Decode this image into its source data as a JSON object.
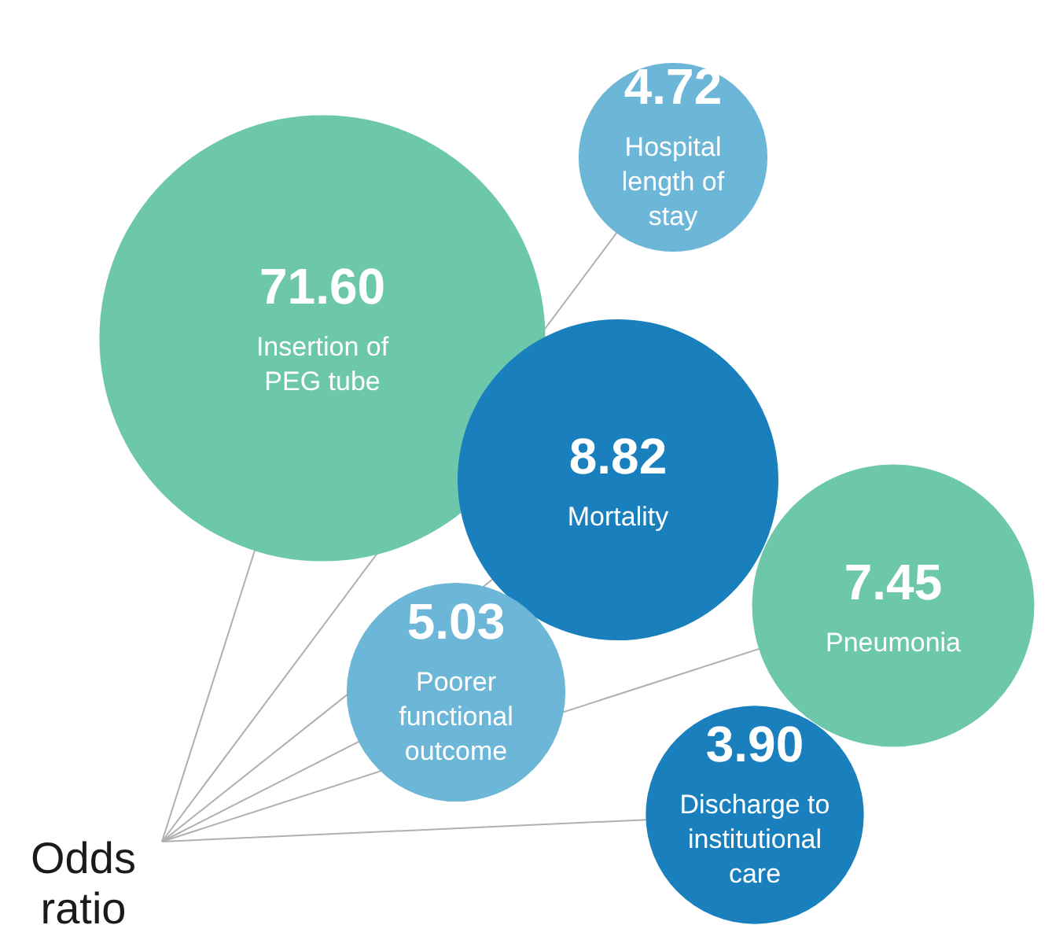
{
  "chart_data": {
    "type": "other",
    "categories": [
      "Insertion of PEG tube",
      "Hospital length of stay",
      "Pneumonia",
      "Mortality",
      "Poorer functional outcome",
      "Discharge to institutional care"
    ],
    "values": [
      71.6,
      4.72,
      7.45,
      8.82,
      5.03,
      3.9
    ],
    "colors": [
      "#6cc7ab",
      "#6cb6d8",
      "#6cc7ab",
      "#1a80bd",
      "#6cb6d8",
      "#1a80bd"
    ],
    "value_labels": [
      "71.60",
      "4.72",
      "7.45",
      "8.82",
      "5.03",
      "3.90"
    ],
    "annotations": [
      "Odds ratio"
    ]
  }
}
